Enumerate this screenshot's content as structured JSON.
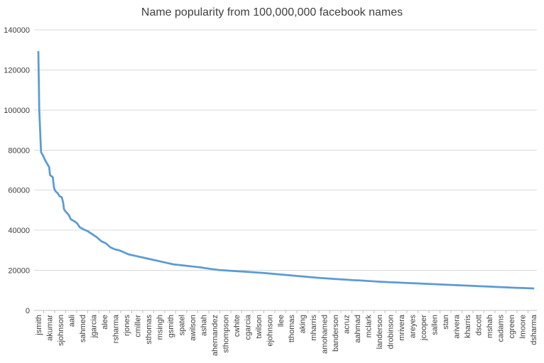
{
  "chart_data": {
    "type": "line",
    "title": "Name popularity from 100,000,000 facebook names",
    "xlabel": "",
    "ylabel": "",
    "ylim": [
      0,
      140000
    ],
    "yticks": [
      0,
      20000,
      40000,
      60000,
      80000,
      100000,
      120000,
      140000
    ],
    "grid": true,
    "legend": "none",
    "color": "#5b9bd5",
    "categories": [
      "jsmith",
      "akumar",
      "sjohnson",
      "aali",
      "sahmed",
      "jgarcia",
      "alee",
      "rsharma",
      "rjones",
      "cmiller",
      "sthomas",
      "msingh",
      "gsmith",
      "spatel",
      "awilson",
      "ashah",
      "ahernandez",
      "sthompson",
      "cwhite",
      "cgarcia",
      "twilson",
      "ejohnson",
      "llee",
      "tthomas",
      "aking",
      "mharris",
      "amohamed",
      "banderson",
      "acruz",
      "aahmad",
      "mclark",
      "landerson",
      "drobinson",
      "mrivera",
      "areyes",
      "jcooper",
      "sallen",
      "stan",
      "arivera",
      "kharris",
      "dscott",
      "mshah",
      "cadams",
      "cgreen",
      "lmoore",
      "dsharma"
    ],
    "series": [
      {
        "values": [
          [
            0,
            129000
          ],
          [
            0.1,
            100000
          ],
          [
            0.3,
            79000
          ],
          [
            0.55,
            77000
          ],
          [
            0.75,
            75000
          ],
          [
            1.0,
            73000
          ],
          [
            1.2,
            71500
          ],
          [
            1.3,
            67500
          ],
          [
            1.6,
            66500
          ],
          [
            1.75,
            61000
          ],
          [
            1.9,
            59500
          ],
          [
            2.15,
            58500
          ],
          [
            2.35,
            57000
          ],
          [
            2.6,
            56500
          ],
          [
            2.75,
            54000
          ],
          [
            2.85,
            50500
          ],
          [
            3.0,
            49500
          ],
          [
            3.2,
            48500
          ],
          [
            3.4,
            47500
          ],
          [
            3.6,
            45500
          ],
          [
            4.0,
            44500
          ],
          [
            4.3,
            43500
          ],
          [
            4.6,
            41500
          ],
          [
            5.0,
            40500
          ],
          [
            5.5,
            39500
          ],
          [
            6.0,
            38000
          ],
          [
            6.5,
            36500
          ],
          [
            7.0,
            34500
          ],
          [
            7.5,
            33500
          ],
          [
            8.0,
            31500
          ],
          [
            8.5,
            30500
          ],
          [
            9.0,
            30000
          ],
          [
            9.5,
            29000
          ],
          [
            10.0,
            28000
          ],
          [
            11.0,
            27000
          ],
          [
            12.0,
            26000
          ],
          [
            13.0,
            25000
          ],
          [
            14.0,
            24000
          ],
          [
            15.0,
            23000
          ],
          [
            16.0,
            22500
          ],
          [
            17.0,
            22000
          ],
          [
            18.0,
            21500
          ],
          [
            19.0,
            20800
          ],
          [
            20.0,
            20200
          ],
          [
            21.0,
            19900
          ],
          [
            22.0,
            19600
          ],
          [
            23.0,
            19300
          ],
          [
            24.0,
            19000
          ],
          [
            25.0,
            18700
          ],
          [
            26.0,
            18300
          ],
          [
            27.0,
            17900
          ],
          [
            28.0,
            17500
          ],
          [
            29.0,
            17100
          ],
          [
            30.0,
            16700
          ],
          [
            31.0,
            16300
          ],
          [
            32.0,
            16000
          ],
          [
            33.0,
            15700
          ],
          [
            34.0,
            15400
          ],
          [
            35.0,
            15100
          ],
          [
            36.0,
            14900
          ],
          [
            37.0,
            14600
          ],
          [
            38.0,
            14300
          ],
          [
            39.0,
            14100
          ],
          [
            40.0,
            13900
          ],
          [
            41.0,
            13700
          ],
          [
            42.0,
            13500
          ],
          [
            43.0,
            13300
          ],
          [
            44.0,
            13100
          ],
          [
            45.0,
            12900
          ],
          [
            46.0,
            12700
          ],
          [
            47.0,
            12500
          ],
          [
            48.0,
            12300
          ],
          [
            49.0,
            12100
          ],
          [
            50.0,
            11900
          ],
          [
            51.0,
            11700
          ],
          [
            52.0,
            11500
          ],
          [
            53.0,
            11300
          ],
          [
            54.0,
            11150
          ],
          [
            55.0,
            11000
          ]
        ]
      }
    ]
  }
}
